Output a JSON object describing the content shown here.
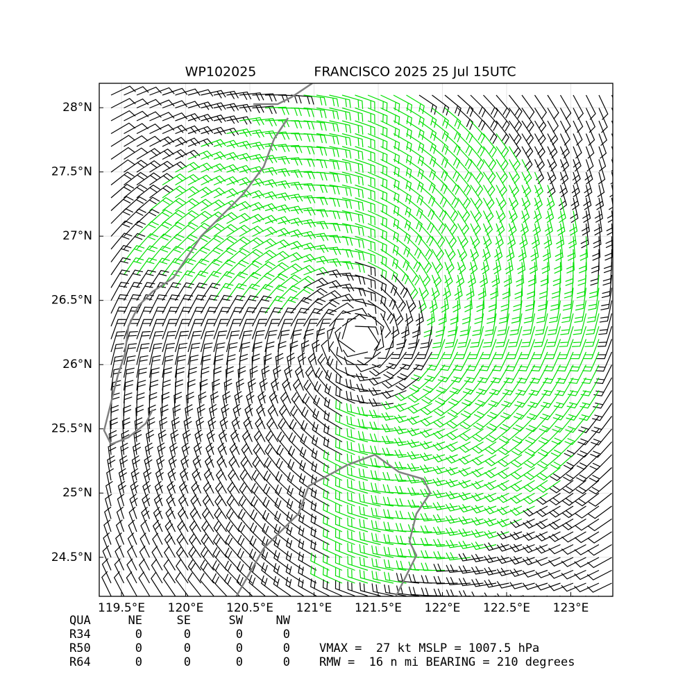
{
  "chart_data": {
    "type": "wind-map",
    "title_id": "WP102025",
    "title": "FRANCISCO 2025 25 Jul 15UTC",
    "xlim": [
      119.327,
      123.327
    ],
    "ylim": [
      24.196,
      28.19
    ],
    "xticks": [
      {
        "value": 119.5,
        "label": "119.5°E"
      },
      {
        "value": 120,
        "label": "120°E"
      },
      {
        "value": 120.5,
        "label": "120.5°E"
      },
      {
        "value": 121,
        "label": "121°E"
      },
      {
        "value": 121.5,
        "label": "121.5°E"
      },
      {
        "value": 122,
        "label": "122°E"
      },
      {
        "value": 122.5,
        "label": "122.5°E"
      },
      {
        "value": 123,
        "label": "123°E"
      }
    ],
    "yticks": [
      {
        "value": 24.5,
        "label": "24.5°N"
      },
      {
        "value": 25,
        "label": "25°N"
      },
      {
        "value": 25.5,
        "label": "25.5°N"
      },
      {
        "value": 26,
        "label": "26°N"
      },
      {
        "value": 26.5,
        "label": "26.5°N"
      },
      {
        "value": 27,
        "label": "27°N"
      },
      {
        "value": 27.5,
        "label": "27.5°N"
      },
      {
        "value": 28,
        "label": "28°N"
      }
    ],
    "grid": true
  },
  "table": {
    "header": [
      "QUA",
      "NE",
      "SE",
      "SW",
      "NW"
    ],
    "rows": [
      [
        "R34",
        "0",
        "0",
        "0",
        "0"
      ],
      [
        "R50",
        "0",
        "0",
        "0",
        "0"
      ],
      [
        "R64",
        "0",
        "0",
        "0",
        "0"
      ]
    ]
  },
  "info": [
    "VMAX =  27 kt MSLP = 1007.5 hPa",
    "RMW =  16 n mi BEARING = 210 degrees"
  ]
}
